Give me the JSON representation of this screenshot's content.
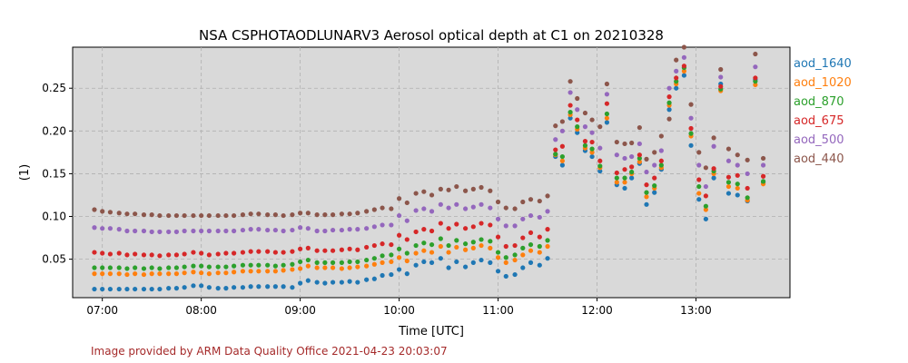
{
  "chart_data": {
    "type": "scatter",
    "title": "NSA CSPHOTAODLUNARV3 Aerosol optical depth at C1 on 20210328",
    "xlabel": "Time [UTC]",
    "ylabel": "(1)",
    "xlim": [
      6.7,
      13.95
    ],
    "ylim": [
      0.005,
      0.298
    ],
    "xticks": [
      7,
      8,
      9,
      10,
      11,
      12,
      13
    ],
    "xtick_labels": [
      "07:00",
      "08:00",
      "09:00",
      "10:00",
      "11:00",
      "12:00",
      "13:00"
    ],
    "yticks": [
      0.05,
      0.1,
      0.15,
      0.2,
      0.25
    ],
    "ytick_labels": [
      "0.05",
      "0.10",
      "0.15",
      "0.20",
      "0.25"
    ],
    "grid": true,
    "legend_position": "outside-right",
    "x": [
      6.92,
      7.0,
      7.08,
      7.17,
      7.25,
      7.33,
      7.42,
      7.5,
      7.58,
      7.67,
      7.75,
      7.83,
      7.92,
      8.0,
      8.08,
      8.17,
      8.25,
      8.33,
      8.42,
      8.5,
      8.58,
      8.67,
      8.75,
      8.83,
      8.92,
      9.0,
      9.08,
      9.17,
      9.25,
      9.33,
      9.42,
      9.5,
      9.58,
      9.67,
      9.75,
      9.83,
      9.92,
      10.0,
      10.08,
      10.17,
      10.25,
      10.33,
      10.42,
      10.5,
      10.58,
      10.67,
      10.75,
      10.83,
      10.92,
      11.0,
      11.08,
      11.17,
      11.25,
      11.33,
      11.42,
      11.5,
      11.58,
      11.65,
      11.73,
      11.8,
      11.88,
      11.95,
      12.03,
      12.1,
      12.2,
      12.28,
      12.35,
      12.43,
      12.5,
      12.58,
      12.65,
      12.73,
      12.8,
      12.88,
      12.95,
      13.03,
      13.1,
      13.18,
      13.25,
      13.33,
      13.42,
      13.52,
      13.6,
      13.68
    ],
    "series": [
      {
        "name": "aod_1640",
        "color": "#1f77b4",
        "values": [
          0.015,
          0.015,
          0.015,
          0.015,
          0.015,
          0.015,
          0.015,
          0.015,
          0.015,
          0.016,
          0.016,
          0.017,
          0.019,
          0.019,
          0.017,
          0.016,
          0.016,
          0.017,
          0.017,
          0.018,
          0.018,
          0.018,
          0.018,
          0.018,
          0.017,
          0.022,
          0.025,
          0.023,
          0.022,
          0.023,
          0.023,
          0.024,
          0.023,
          0.026,
          0.027,
          0.031,
          0.032,
          0.038,
          0.033,
          0.043,
          0.047,
          0.046,
          0.051,
          0.04,
          0.047,
          0.041,
          0.046,
          0.049,
          0.046,
          0.036,
          0.03,
          0.032,
          0.04,
          0.046,
          0.043,
          0.051,
          0.17,
          0.16,
          0.215,
          0.198,
          0.177,
          0.17,
          0.153,
          0.21,
          0.137,
          0.133,
          0.145,
          0.162,
          0.114,
          0.128,
          0.155,
          0.225,
          0.25,
          0.265,
          0.183,
          0.12,
          0.097,
          0.145,
          0.255,
          0.127,
          0.125,
          0.118,
          0.26,
          0.14
        ]
      },
      {
        "name": "aod_1020",
        "color": "#ff7f0e",
        "values": [
          0.033,
          0.033,
          0.033,
          0.033,
          0.032,
          0.033,
          0.032,
          0.033,
          0.033,
          0.033,
          0.033,
          0.034,
          0.035,
          0.034,
          0.033,
          0.034,
          0.034,
          0.035,
          0.036,
          0.036,
          0.036,
          0.036,
          0.036,
          0.037,
          0.038,
          0.039,
          0.042,
          0.04,
          0.04,
          0.04,
          0.039,
          0.04,
          0.041,
          0.042,
          0.044,
          0.046,
          0.047,
          0.052,
          0.048,
          0.057,
          0.06,
          0.058,
          0.065,
          0.058,
          0.064,
          0.061,
          0.063,
          0.066,
          0.063,
          0.052,
          0.046,
          0.049,
          0.055,
          0.06,
          0.058,
          0.065,
          0.172,
          0.165,
          0.219,
          0.202,
          0.18,
          0.175,
          0.157,
          0.215,
          0.14,
          0.14,
          0.15,
          0.164,
          0.123,
          0.133,
          0.157,
          0.23,
          0.255,
          0.27,
          0.194,
          0.127,
          0.108,
          0.15,
          0.247,
          0.135,
          0.133,
          0.119,
          0.254,
          0.138
        ]
      },
      {
        "name": "aod_870",
        "color": "#2ca02c",
        "values": [
          0.04,
          0.04,
          0.04,
          0.04,
          0.039,
          0.04,
          0.039,
          0.04,
          0.039,
          0.04,
          0.04,
          0.041,
          0.042,
          0.042,
          0.041,
          0.041,
          0.041,
          0.042,
          0.043,
          0.043,
          0.043,
          0.043,
          0.042,
          0.043,
          0.044,
          0.047,
          0.049,
          0.046,
          0.046,
          0.046,
          0.046,
          0.047,
          0.047,
          0.049,
          0.051,
          0.054,
          0.055,
          0.062,
          0.057,
          0.066,
          0.069,
          0.067,
          0.074,
          0.066,
          0.072,
          0.068,
          0.07,
          0.073,
          0.071,
          0.058,
          0.052,
          0.055,
          0.063,
          0.067,
          0.065,
          0.072,
          0.173,
          0.17,
          0.222,
          0.205,
          0.183,
          0.179,
          0.159,
          0.22,
          0.145,
          0.145,
          0.152,
          0.168,
          0.128,
          0.136,
          0.16,
          0.233,
          0.258,
          0.274,
          0.197,
          0.135,
          0.112,
          0.153,
          0.249,
          0.14,
          0.138,
          0.122,
          0.258,
          0.141
        ]
      },
      {
        "name": "aod_675",
        "color": "#d62728",
        "values": [
          0.058,
          0.057,
          0.056,
          0.057,
          0.055,
          0.056,
          0.055,
          0.055,
          0.054,
          0.055,
          0.055,
          0.056,
          0.058,
          0.057,
          0.055,
          0.056,
          0.057,
          0.057,
          0.058,
          0.059,
          0.059,
          0.059,
          0.058,
          0.058,
          0.059,
          0.062,
          0.063,
          0.06,
          0.06,
          0.06,
          0.061,
          0.062,
          0.061,
          0.064,
          0.066,
          0.068,
          0.067,
          0.078,
          0.073,
          0.082,
          0.085,
          0.083,
          0.092,
          0.086,
          0.091,
          0.086,
          0.088,
          0.092,
          0.09,
          0.076,
          0.065,
          0.066,
          0.075,
          0.081,
          0.076,
          0.085,
          0.178,
          0.182,
          0.23,
          0.213,
          0.188,
          0.187,
          0.165,
          0.232,
          0.151,
          0.155,
          0.158,
          0.172,
          0.137,
          0.145,
          0.165,
          0.24,
          0.262,
          0.276,
          0.203,
          0.143,
          0.124,
          0.156,
          0.252,
          0.146,
          0.148,
          0.133,
          0.262,
          0.147
        ]
      },
      {
        "name": "aod_500",
        "color": "#9467bd",
        "values": [
          0.087,
          0.086,
          0.086,
          0.085,
          0.083,
          0.083,
          0.083,
          0.082,
          0.082,
          0.082,
          0.082,
          0.083,
          0.083,
          0.083,
          0.083,
          0.083,
          0.083,
          0.083,
          0.084,
          0.085,
          0.085,
          0.084,
          0.084,
          0.083,
          0.084,
          0.087,
          0.086,
          0.083,
          0.083,
          0.084,
          0.084,
          0.085,
          0.085,
          0.086,
          0.088,
          0.09,
          0.09,
          0.101,
          0.095,
          0.107,
          0.109,
          0.106,
          0.114,
          0.11,
          0.114,
          0.109,
          0.111,
          0.114,
          0.11,
          0.097,
          0.089,
          0.089,
          0.097,
          0.101,
          0.099,
          0.106,
          0.19,
          0.2,
          0.245,
          0.225,
          0.205,
          0.198,
          0.18,
          0.243,
          0.172,
          0.168,
          0.17,
          0.185,
          0.152,
          0.16,
          0.177,
          0.25,
          0.27,
          0.286,
          0.215,
          0.16,
          0.135,
          0.182,
          0.263,
          0.165,
          0.16,
          0.15,
          0.275,
          0.16
        ]
      },
      {
        "name": "aod_440",
        "color": "#8c564b",
        "values": [
          0.108,
          0.106,
          0.105,
          0.104,
          0.103,
          0.103,
          0.102,
          0.102,
          0.101,
          0.101,
          0.101,
          0.101,
          0.101,
          0.101,
          0.101,
          0.101,
          0.101,
          0.101,
          0.102,
          0.103,
          0.103,
          0.102,
          0.102,
          0.101,
          0.102,
          0.104,
          0.104,
          0.102,
          0.102,
          0.102,
          0.103,
          0.103,
          0.104,
          0.106,
          0.108,
          0.11,
          0.109,
          0.121,
          0.116,
          0.127,
          0.129,
          0.125,
          0.132,
          0.131,
          0.135,
          0.13,
          0.132,
          0.134,
          0.13,
          0.117,
          0.11,
          0.109,
          0.117,
          0.12,
          0.118,
          0.124,
          0.206,
          0.211,
          0.258,
          0.238,
          0.221,
          0.213,
          0.205,
          0.255,
          0.187,
          0.185,
          0.186,
          0.204,
          0.167,
          0.175,
          0.194,
          0.214,
          0.283,
          0.298,
          0.231,
          0.175,
          0.157,
          0.192,
          0.272,
          0.179,
          0.172,
          0.166,
          0.29,
          0.168
        ]
      }
    ]
  },
  "footer": {
    "text": "Image provided by ARM Data Quality Office 2021-04-23 20:03:07"
  }
}
